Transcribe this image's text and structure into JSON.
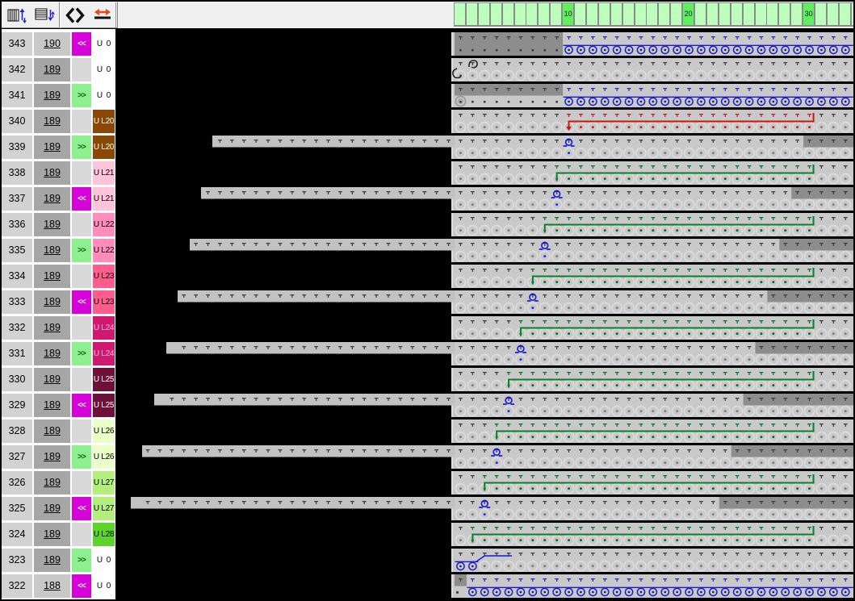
{
  "toolbar": {
    "groups": [
      [
        "column-grid-arrows",
        "row-grid-arrows"
      ],
      [
        "diamond-brackets",
        "red-swap-arrow"
      ]
    ]
  },
  "ruler": {
    "needle_count": 34,
    "marks": [
      {
        "needle": 10,
        "label": "10"
      },
      {
        "needle": 20,
        "label": "20"
      },
      {
        "needle": 30,
        "label": "30"
      }
    ]
  },
  "label_styles": {
    "U  0": {
      "bg": "#ffffff",
      "fg": "#000000"
    },
    "U L20": {
      "bg": "#8a4804",
      "fg": "#ffffff"
    },
    "U L21": {
      "bg": "#ffc3da",
      "fg": "#000000"
    },
    "U L22": {
      "bg": "#ff8cbb",
      "fg": "#000000"
    },
    "U L23": {
      "bg": "#ff5c8d",
      "fg": "#000000"
    },
    "U L24": {
      "bg": "#d2176e",
      "fg": "#ffc3da"
    },
    "U L25": {
      "bg": "#6e1038",
      "fg": "#ffffff"
    },
    "U L26": {
      "bg": "#ebffc8",
      "fg": "#000000"
    },
    "U L27": {
      "bg": "#b4ef7e",
      "fg": "#000000"
    },
    "U L28": {
      "bg": "#5cd42a",
      "fg": "#000000"
    }
  },
  "dir_styles": {
    "<<": {
      "bg": "#d800d8",
      "fg": "#ffffff"
    },
    ">>": {
      "bg": "#8cf08c",
      "fg": "#1a5c1a"
    }
  },
  "pattern_colors": {
    "bed": "#c9c9c9",
    "bar": "#c2c2c2",
    "dark": "#8d8d8d",
    "edge": "#dfdfdf",
    "ghost": "#dcdcdc",
    "loop": "#1a1ad6",
    "line_red": "#cc1414",
    "line_green": "#0b7d2b",
    "dot_dark": "#3c3c3c",
    "dot_blue": "#2626cc",
    "dot_green": "#0c6e28",
    "dot_red": "#b82020",
    "gdot_default": "#7e7e7e",
    "gdot_blue": "#2233dd",
    "gdot_green": "#0c6e28",
    "gdot_red": "#cc2020"
  },
  "rows": [
    {
      "row": "343",
      "count": "190",
      "shade": "light",
      "dir": "<<",
      "label": "U  0",
      "pattern": {
        "darkTop": [
          [
            1,
            9
          ]
        ],
        "darkBot": [
          [
            1,
            9
          ]
        ],
        "loops": [
          10,
          34
        ],
        "topDots": [
          {
            "f": 10,
            "t": 34,
            "c": "blue"
          }
        ],
        "botDots": [
          [
            1,
            9
          ]
        ]
      }
    },
    {
      "row": "342",
      "count": "189",
      "shade": "dark",
      "dir": "",
      "label": "U  0",
      "pattern": {
        "ghosts": [
          [
            1,
            34
          ]
        ],
        "sp": [
          "hooks"
        ]
      }
    },
    {
      "row": "341",
      "count": "189",
      "shade": "dark",
      "dir": ">>",
      "label": "U  0",
      "pattern": {
        "darkTop": [
          [
            1,
            9
          ]
        ],
        "loops": [
          10,
          34
        ],
        "topDots": [
          {
            "f": 10,
            "t": 34,
            "c": "blue"
          }
        ],
        "botDots": [
          [
            1,
            9
          ]
        ],
        "sp": [
          "startCircle"
        ]
      }
    },
    {
      "row": "340",
      "count": "189",
      "shade": "dark",
      "dir": "",
      "label": "U L20",
      "pattern": {
        "ghosts": [
          [
            1,
            34
          ]
        ],
        "line": {
          "c": "red",
          "f": 10,
          "t": 30
        },
        "topDots": [
          {
            "f": 10,
            "t": 30,
            "c": "red"
          }
        ],
        "ghostDots": [
          {
            "f": 10,
            "t": 30,
            "c": "red"
          }
        ]
      }
    },
    {
      "row": "339",
      "count": "189",
      "shade": "dark",
      "dir": ">>",
      "label": "U L20",
      "pattern": {
        "bar": 263,
        "omega": 10,
        "darkTop": [
          [
            30,
            34
          ]
        ],
        "ghosts": [
          [
            1,
            34
          ]
        ],
        "ghostDots": [
          {
            "f": 10,
            "t": 10,
            "c": "blue"
          }
        ]
      }
    },
    {
      "row": "338",
      "count": "189",
      "shade": "dark",
      "dir": "",
      "label": "U L21",
      "pattern": {
        "ghosts": [
          [
            1,
            34
          ]
        ],
        "line": {
          "c": "green",
          "f": 9,
          "t": 30
        },
        "topDots": [
          {
            "f": 9,
            "t": 30,
            "c": "green"
          }
        ],
        "ghostDots": [
          {
            "f": 9,
            "t": 30,
            "c": "green"
          }
        ]
      }
    },
    {
      "row": "337",
      "count": "189",
      "shade": "dark",
      "dir": "<<",
      "label": "U L21",
      "pattern": {
        "bar": 249,
        "omega": 9,
        "darkTop": [
          [
            29,
            34
          ]
        ],
        "ghosts": [
          [
            1,
            34
          ]
        ],
        "ghostDots": [
          {
            "f": 9,
            "t": 9,
            "c": "blue"
          }
        ]
      }
    },
    {
      "row": "336",
      "count": "189",
      "shade": "dark",
      "dir": "",
      "label": "U L22",
      "pattern": {
        "ghosts": [
          [
            1,
            34
          ]
        ],
        "line": {
          "c": "green",
          "f": 8,
          "t": 30
        },
        "topDots": [
          {
            "f": 8,
            "t": 30,
            "c": "green"
          }
        ],
        "ghostDots": [
          {
            "f": 8,
            "t": 30,
            "c": "green"
          }
        ]
      }
    },
    {
      "row": "335",
      "count": "189",
      "shade": "dark",
      "dir": ">>",
      "label": "U L22",
      "pattern": {
        "bar": 235,
        "omega": 8,
        "darkTop": [
          [
            28,
            34
          ]
        ],
        "ghosts": [
          [
            1,
            34
          ]
        ],
        "ghostDots": [
          {
            "f": 8,
            "t": 8,
            "c": "blue"
          }
        ]
      }
    },
    {
      "row": "334",
      "count": "189",
      "shade": "dark",
      "dir": "",
      "label": "U L23",
      "pattern": {
        "ghosts": [
          [
            1,
            34
          ]
        ],
        "line": {
          "c": "green",
          "f": 7,
          "t": 30
        },
        "topDots": [
          {
            "f": 7,
            "t": 30,
            "c": "green"
          }
        ],
        "ghostDots": [
          {
            "f": 7,
            "t": 30,
            "c": "green"
          }
        ]
      }
    },
    {
      "row": "333",
      "count": "189",
      "shade": "dark",
      "dir": "<<",
      "label": "U L23",
      "pattern": {
        "bar": 220,
        "omega": 7,
        "darkTop": [
          [
            27,
            34
          ]
        ],
        "ghosts": [
          [
            1,
            34
          ]
        ],
        "ghostDots": [
          {
            "f": 7,
            "t": 7,
            "c": "blue"
          }
        ]
      }
    },
    {
      "row": "332",
      "count": "189",
      "shade": "dark",
      "dir": "",
      "label": "U L24",
      "pattern": {
        "ghosts": [
          [
            1,
            34
          ]
        ],
        "line": {
          "c": "green",
          "f": 6,
          "t": 30
        },
        "topDots": [
          {
            "f": 6,
            "t": 30,
            "c": "green"
          }
        ],
        "ghostDots": [
          {
            "f": 6,
            "t": 30,
            "c": "green"
          }
        ]
      }
    },
    {
      "row": "331",
      "count": "189",
      "shade": "dark",
      "dir": ">>",
      "label": "U L24",
      "pattern": {
        "bar": 206,
        "omega": 6,
        "darkTop": [
          [
            26,
            34
          ]
        ],
        "ghosts": [
          [
            1,
            34
          ]
        ],
        "ghostDots": [
          {
            "f": 6,
            "t": 6,
            "c": "blue"
          }
        ]
      }
    },
    {
      "row": "330",
      "count": "189",
      "shade": "dark",
      "dir": "",
      "label": "U L25",
      "pattern": {
        "ghosts": [
          [
            1,
            34
          ]
        ],
        "line": {
          "c": "green",
          "f": 5,
          "t": 30
        },
        "topDots": [
          {
            "f": 5,
            "t": 30,
            "c": "green"
          }
        ],
        "ghostDots": [
          {
            "f": 5,
            "t": 30,
            "c": "green"
          }
        ]
      }
    },
    {
      "row": "329",
      "count": "189",
      "shade": "dark",
      "dir": "<<",
      "label": "U L25",
      "pattern": {
        "bar": 191,
        "omega": 5,
        "darkTop": [
          [
            25,
            34
          ]
        ],
        "ghosts": [
          [
            1,
            34
          ]
        ],
        "ghostDots": [
          {
            "f": 5,
            "t": 5,
            "c": "blue"
          }
        ]
      }
    },
    {
      "row": "328",
      "count": "189",
      "shade": "dark",
      "dir": "",
      "label": "U L26",
      "pattern": {
        "ghosts": [
          [
            1,
            34
          ]
        ],
        "line": {
          "c": "green",
          "f": 4,
          "t": 30
        },
        "topDots": [
          {
            "f": 4,
            "t": 30,
            "c": "green"
          }
        ],
        "ghostDots": [
          {
            "f": 4,
            "t": 30,
            "c": "green"
          }
        ]
      }
    },
    {
      "row": "327",
      "count": "189",
      "shade": "dark",
      "dir": ">>",
      "label": "U L26",
      "pattern": {
        "bar": 176,
        "omega": 4,
        "darkTop": [
          [
            24,
            34
          ]
        ],
        "ghosts": [
          [
            1,
            34
          ]
        ],
        "ghostDots": [
          {
            "f": 4,
            "t": 4,
            "c": "blue"
          }
        ]
      }
    },
    {
      "row": "326",
      "count": "189",
      "shade": "dark",
      "dir": "",
      "label": "U L27",
      "pattern": {
        "ghosts": [
          [
            1,
            34
          ]
        ],
        "line": {
          "c": "green",
          "f": 3,
          "t": 30
        },
        "topDots": [
          {
            "f": 3,
            "t": 30,
            "c": "green"
          }
        ],
        "ghostDots": [
          {
            "f": 3,
            "t": 30,
            "c": "green"
          }
        ]
      }
    },
    {
      "row": "325",
      "count": "189",
      "shade": "dark",
      "dir": "<<",
      "label": "U L27",
      "pattern": {
        "bar": 162,
        "omega": 3,
        "darkTop": [
          [
            23,
            34
          ]
        ],
        "ghosts": [
          [
            1,
            34
          ]
        ],
        "ghostDots": [
          {
            "f": 3,
            "t": 3,
            "c": "blue"
          }
        ]
      }
    },
    {
      "row": "324",
      "count": "189",
      "shade": "dark",
      "dir": "",
      "label": "U L28",
      "pattern": {
        "ghosts": [
          [
            1,
            34
          ]
        ],
        "line": {
          "c": "green",
          "f": 2,
          "t": 30
        },
        "topDots": [
          {
            "f": 2,
            "t": 30,
            "c": "green"
          }
        ],
        "ghostDots": [
          {
            "f": 2,
            "t": 30,
            "c": "green"
          }
        ]
      }
    },
    {
      "row": "323",
      "count": "189",
      "shade": "dark",
      "dir": ">>",
      "label": "U  0",
      "pattern": {
        "loops": [
          1,
          2
        ],
        "ghosts": [
          [
            3,
            34
          ]
        ],
        "sp": [
          "yarnIn"
        ]
      }
    },
    {
      "row": "322",
      "count": "188",
      "shade": "light",
      "dir": "<<",
      "label": "U  0",
      "pattern": {
        "darkTop": [
          [
            1,
            1
          ]
        ],
        "loops": [
          2,
          34
        ],
        "topDots": [
          {
            "f": 2,
            "t": 34,
            "c": "blue"
          }
        ],
        "sp": [
          "tailDot"
        ]
      }
    }
  ]
}
